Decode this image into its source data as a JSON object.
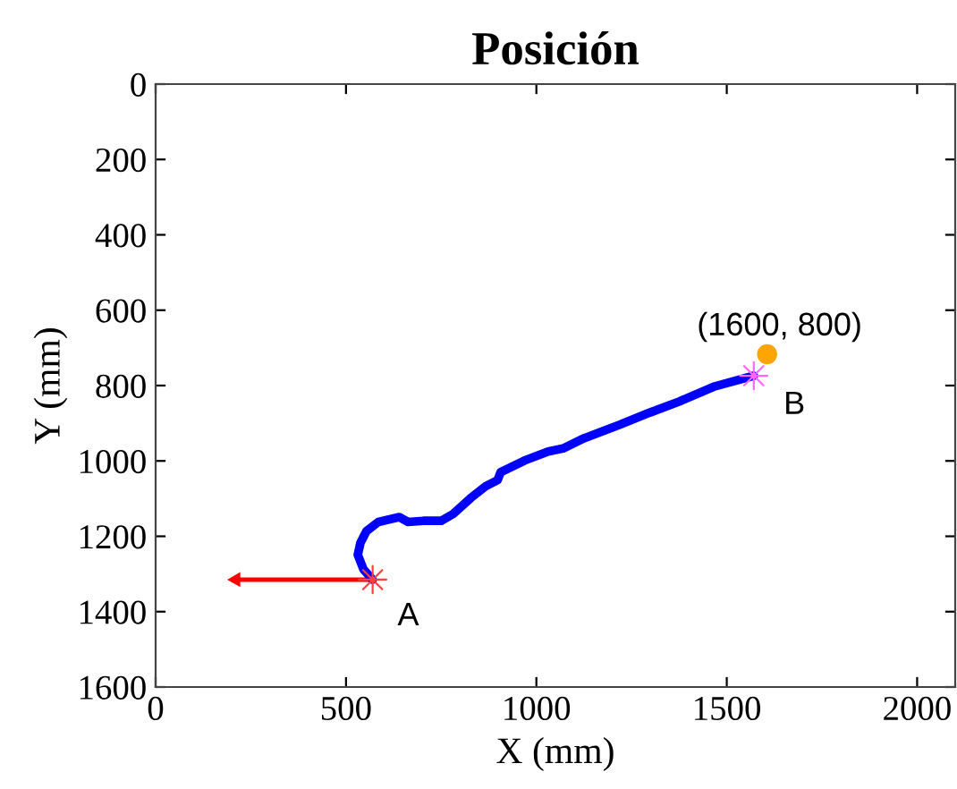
{
  "chart_data": {
    "type": "line",
    "title": "Posición",
    "xlabel": "X (mm)",
    "ylabel": "Y (mm)",
    "xlim": [
      0,
      2100
    ],
    "xticks": [
      0,
      500,
      1000,
      1500,
      2000
    ],
    "ylim": [
      1600,
      0
    ],
    "yticks": [
      0,
      200,
      400,
      600,
      800,
      1000,
      1200,
      1400,
      1600
    ],
    "grid": false,
    "legend": false,
    "series": [
      {
        "color": "#ff0000",
        "marker": "triangle",
        "x": [
          570,
          211
        ],
        "values": [
          1315,
          1315
        ]
      },
      {
        "color": "#0000ff",
        "marker": "none",
        "x": [
          570,
          546,
          531,
          538,
          554,
          585,
          640,
          663,
          703,
          750,
          781,
          828,
          867,
          898,
          906,
          969,
          1031,
          1070,
          1125,
          1219,
          1297,
          1376,
          1469,
          1571
        ],
        "values": [
          1315,
          1288,
          1249,
          1217,
          1186,
          1162,
          1149,
          1162,
          1159,
          1159,
          1141,
          1098,
          1067,
          1051,
          1030,
          999,
          975,
          967,
          940,
          904,
          872,
          842,
          802,
          774
        ]
      },
      {
        "type": "scatter",
        "color": "#ff4040",
        "marker": "star",
        "x": [
          570
        ],
        "values": [
          1315
        ]
      },
      {
        "type": "scatter",
        "color": "#ff66ff",
        "marker": "star",
        "x": [
          1571
        ],
        "values": [
          774
        ]
      },
      {
        "type": "scatter",
        "color": "#ffa500",
        "marker": "circle",
        "x": [
          1606
        ],
        "values": [
          717
        ]
      }
    ],
    "annotations": [
      {
        "text": "A",
        "x": 570,
        "y": 1315
      },
      {
        "text": "B",
        "x": 1571,
        "y": 774
      },
      {
        "text": "(1600, 800)",
        "x": 1606,
        "y": 717
      }
    ]
  }
}
